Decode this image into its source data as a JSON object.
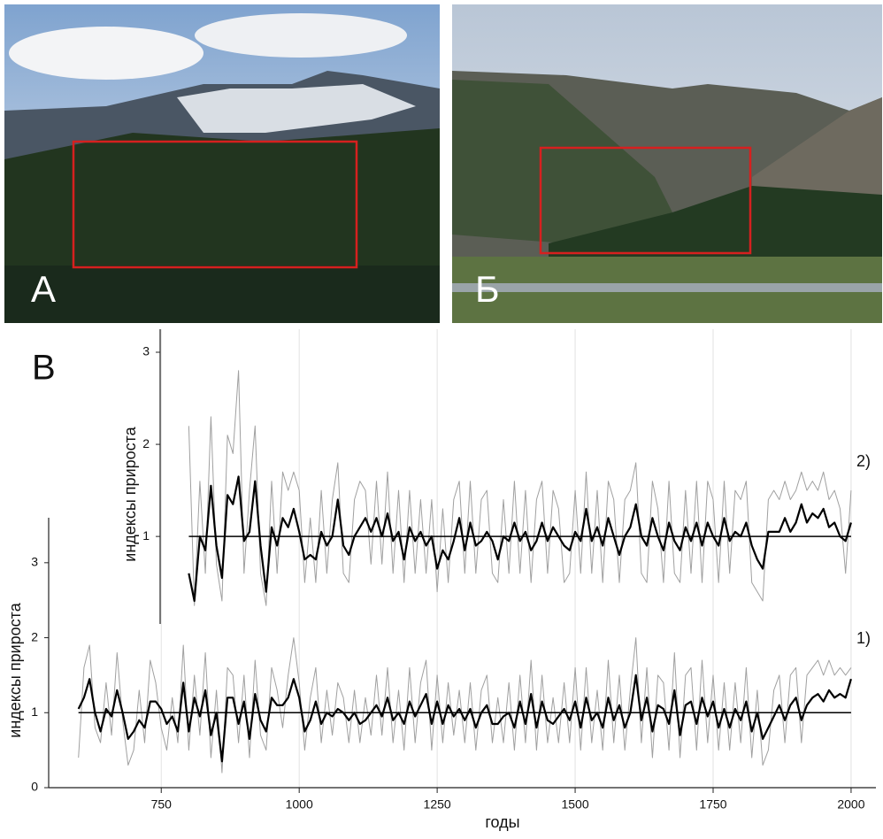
{
  "photos": [
    {
      "label": "А"
    },
    {
      "label": "Б"
    }
  ],
  "panel_label": "В",
  "chart_data": [
    {
      "type": "line",
      "panel_label": "2)",
      "y_label": "индексы прироста",
      "ylim": [
        0.05,
        3.25
      ],
      "yticks": [
        1,
        2,
        3
      ],
      "xlim": [
        546,
        2045
      ],
      "reference_value": 1,
      "x": [
        800,
        810,
        820,
        830,
        840,
        850,
        860,
        870,
        880,
        890,
        900,
        910,
        920,
        930,
        940,
        950,
        960,
        970,
        980,
        990,
        1000,
        1010,
        1020,
        1030,
        1040,
        1050,
        1060,
        1070,
        1080,
        1090,
        1100,
        1110,
        1120,
        1130,
        1140,
        1150,
        1160,
        1170,
        1180,
        1190,
        1200,
        1210,
        1220,
        1230,
        1240,
        1250,
        1260,
        1270,
        1280,
        1290,
        1300,
        1310,
        1320,
        1330,
        1340,
        1350,
        1360,
        1370,
        1380,
        1390,
        1400,
        1410,
        1420,
        1430,
        1440,
        1450,
        1460,
        1470,
        1480,
        1490,
        1500,
        1510,
        1520,
        1530,
        1540,
        1550,
        1560,
        1570,
        1580,
        1590,
        1600,
        1610,
        1620,
        1630,
        1640,
        1650,
        1660,
        1670,
        1680,
        1690,
        1700,
        1710,
        1720,
        1730,
        1740,
        1750,
        1760,
        1770,
        1780,
        1790,
        1800,
        1810,
        1820,
        1830,
        1840,
        1850,
        1860,
        1870,
        1880,
        1890,
        1900,
        1910,
        1920,
        1930,
        1940,
        1950,
        1960,
        1970,
        1980,
        1990,
        2000
      ],
      "series": [
        {
          "color": "#a0a0a0",
          "values": [
            2.2,
            0.25,
            1.6,
            0.6,
            2.3,
            0.7,
            0.3,
            2.1,
            1.9,
            2.8,
            0.6,
            1.5,
            2.2,
            0.6,
            0.25,
            1.6,
            0.6,
            1.7,
            1.5,
            1.7,
            1.5,
            0.5,
            1.2,
            0.5,
            1.5,
            0.6,
            1.4,
            1.8,
            0.6,
            0.5,
            1.4,
            1.6,
            1.5,
            0.7,
            1.6,
            0.7,
            1.7,
            0.6,
            1.5,
            0.5,
            1.5,
            0.6,
            1.4,
            0.6,
            1.4,
            0.4,
            1.3,
            0.5,
            1.4,
            1.6,
            0.6,
            1.6,
            0.6,
            1.4,
            1.5,
            0.6,
            0.5,
            1.4,
            0.6,
            1.6,
            0.6,
            1.5,
            0.5,
            1.4,
            1.6,
            0.6,
            1.5,
            1.3,
            0.5,
            0.6,
            1.5,
            0.6,
            1.7,
            0.6,
            1.5,
            0.5,
            1.6,
            1.4,
            0.5,
            1.4,
            1.5,
            1.8,
            0.6,
            0.5,
            1.6,
            1.3,
            0.5,
            1.6,
            0.6,
            0.5,
            1.5,
            0.6,
            1.6,
            0.5,
            1.6,
            1.4,
            0.5,
            1.6,
            0.6,
            1.5,
            1.4,
            1.6,
            0.5,
            0.4,
            0.3,
            1.4,
            1.5,
            1.4,
            1.6,
            1.4,
            1.5,
            1.7,
            1.5,
            1.6,
            1.5,
            1.7,
            1.4,
            1.5,
            1.3,
            0.6,
            1.5
          ]
        },
        {
          "color": "#000000",
          "values": [
            0.6,
            0.3,
            1.0,
            0.85,
            1.55,
            0.9,
            0.55,
            1.45,
            1.35,
            1.65,
            0.95,
            1.05,
            1.6,
            0.9,
            0.4,
            1.1,
            0.9,
            1.2,
            1.1,
            1.3,
            1.05,
            0.75,
            0.8,
            0.75,
            1.05,
            0.9,
            1.0,
            1.4,
            0.9,
            0.8,
            1.0,
            1.1,
            1.2,
            1.05,
            1.2,
            1.0,
            1.25,
            0.95,
            1.05,
            0.75,
            1.1,
            0.95,
            1.05,
            0.9,
            1.0,
            0.65,
            0.85,
            0.75,
            0.95,
            1.2,
            0.85,
            1.15,
            0.9,
            0.95,
            1.05,
            0.95,
            0.75,
            1.0,
            0.95,
            1.15,
            0.95,
            1.05,
            0.85,
            0.95,
            1.15,
            0.95,
            1.1,
            1.0,
            0.9,
            0.85,
            1.05,
            0.95,
            1.3,
            0.95,
            1.1,
            0.9,
            1.2,
            1.0,
            0.8,
            1.0,
            1.1,
            1.35,
            1.0,
            0.9,
            1.2,
            1.0,
            0.85,
            1.15,
            0.95,
            0.85,
            1.1,
            0.95,
            1.15,
            0.9,
            1.15,
            1.0,
            0.9,
            1.2,
            0.95,
            1.05,
            1.0,
            1.15,
            0.9,
            0.75,
            0.65,
            1.05,
            1.05,
            1.05,
            1.2,
            1.05,
            1.15,
            1.35,
            1.15,
            1.25,
            1.2,
            1.3,
            1.1,
            1.15,
            1.0,
            0.95,
            1.15
          ]
        }
      ]
    },
    {
      "type": "line",
      "panel_label": "1)",
      "y_label": "индексы прироста",
      "x_label": "годы",
      "ylim": [
        0,
        3.6
      ],
      "yticks": [
        0,
        1,
        2,
        3
      ],
      "xlim": [
        546,
        2045
      ],
      "xticks": [
        750,
        1000,
        1250,
        1500,
        1750,
        2000
      ],
      "grid": true,
      "reference_value": 1,
      "x": [
        600,
        610,
        620,
        630,
        640,
        650,
        660,
        670,
        680,
        690,
        700,
        710,
        720,
        730,
        740,
        750,
        760,
        770,
        780,
        790,
        800,
        810,
        820,
        830,
        840,
        850,
        860,
        870,
        880,
        890,
        900,
        910,
        920,
        930,
        940,
        950,
        960,
        970,
        980,
        990,
        1000,
        1010,
        1020,
        1030,
        1040,
        1050,
        1060,
        1070,
        1080,
        1090,
        1100,
        1110,
        1120,
        1130,
        1140,
        1150,
        1160,
        1170,
        1180,
        1190,
        1200,
        1210,
        1220,
        1230,
        1240,
        1250,
        1260,
        1270,
        1280,
        1290,
        1300,
        1310,
        1320,
        1330,
        1340,
        1350,
        1360,
        1370,
        1380,
        1390,
        1400,
        1410,
        1420,
        1430,
        1440,
        1450,
        1460,
        1470,
        1480,
        1490,
        1500,
        1510,
        1520,
        1530,
        1540,
        1550,
        1560,
        1570,
        1580,
        1590,
        1600,
        1610,
        1620,
        1630,
        1640,
        1650,
        1660,
        1670,
        1680,
        1690,
        1700,
        1710,
        1720,
        1730,
        1740,
        1750,
        1760,
        1770,
        1780,
        1790,
        1800,
        1810,
        1820,
        1830,
        1840,
        1850,
        1860,
        1870,
        1880,
        1890,
        1900,
        1910,
        1920,
        1930,
        1940,
        1950,
        1960,
        1970,
        1980,
        1990,
        2000
      ],
      "series": [
        {
          "color": "#a0a0a0",
          "values": [
            0.4,
            1.6,
            1.9,
            0.8,
            0.6,
            1.4,
            0.7,
            1.8,
            0.9,
            0.3,
            0.5,
            1.3,
            0.6,
            1.7,
            1.4,
            0.8,
            0.5,
            1.2,
            0.6,
            1.9,
            0.5,
            1.5,
            0.7,
            1.8,
            0.4,
            1.3,
            0.2,
            1.6,
            1.5,
            0.6,
            1.5,
            0.4,
            1.7,
            0.7,
            0.5,
            1.6,
            1.3,
            0.8,
            1.5,
            2.0,
            1.4,
            0.5,
            1.2,
            1.6,
            0.6,
            1.3,
            0.7,
            1.4,
            1.2,
            0.6,
            1.3,
            0.6,
            1.2,
            0.7,
            1.5,
            0.7,
            1.6,
            0.6,
            1.3,
            0.5,
            1.6,
            0.6,
            1.4,
            1.7,
            0.5,
            1.5,
            0.6,
            1.4,
            0.7,
            1.3,
            0.6,
            1.4,
            0.5,
            1.3,
            1.5,
            0.6,
            1.2,
            0.6,
            1.4,
            0.5,
            1.5,
            0.6,
            1.7,
            0.5,
            1.5,
            0.6,
            1.2,
            0.6,
            1.4,
            0.6,
            1.6,
            0.5,
            1.6,
            0.6,
            1.3,
            0.5,
            1.7,
            0.6,
            1.5,
            0.5,
            1.3,
            2.0,
            0.6,
            1.6,
            0.4,
            1.5,
            1.4,
            0.5,
            1.8,
            0.4,
            1.5,
            1.6,
            0.5,
            1.7,
            0.6,
            1.5,
            0.5,
            1.4,
            0.5,
            1.4,
            0.6,
            1.6,
            0.4,
            1.3,
            0.3,
            0.5,
            1.3,
            1.5,
            0.6,
            1.5,
            1.6,
            0.6,
            1.5,
            1.6,
            1.7,
            1.5,
            1.7,
            1.5,
            1.6,
            1.5,
            1.6
          ]
        },
        {
          "color": "#000000",
          "values": [
            1.05,
            1.2,
            1.45,
            1.0,
            0.75,
            1.05,
            0.95,
            1.3,
            1.0,
            0.65,
            0.75,
            0.9,
            0.8,
            1.15,
            1.15,
            1.05,
            0.85,
            0.95,
            0.75,
            1.4,
            0.75,
            1.2,
            0.95,
            1.3,
            0.7,
            1.0,
            0.35,
            1.2,
            1.2,
            0.85,
            1.15,
            0.65,
            1.25,
            0.9,
            0.75,
            1.2,
            1.1,
            1.1,
            1.2,
            1.45,
            1.2,
            0.75,
            0.9,
            1.15,
            0.85,
            1.0,
            0.95,
            1.05,
            1.0,
            0.9,
            1.0,
            0.85,
            0.9,
            1.0,
            1.1,
            0.95,
            1.2,
            0.9,
            1.0,
            0.85,
            1.15,
            0.95,
            1.1,
            1.25,
            0.85,
            1.15,
            0.85,
            1.1,
            0.95,
            1.05,
            0.9,
            1.05,
            0.8,
            1.0,
            1.1,
            0.85,
            0.85,
            0.95,
            1.0,
            0.8,
            1.15,
            0.85,
            1.25,
            0.8,
            1.15,
            0.9,
            0.85,
            0.95,
            1.05,
            0.9,
            1.15,
            0.8,
            1.2,
            0.9,
            1.0,
            0.8,
            1.2,
            0.9,
            1.1,
            0.8,
            1.0,
            1.5,
            0.9,
            1.2,
            0.75,
            1.1,
            1.05,
            0.85,
            1.3,
            0.7,
            1.1,
            1.15,
            0.85,
            1.2,
            0.95,
            1.15,
            0.8,
            1.05,
            0.8,
            1.05,
            0.9,
            1.15,
            0.75,
            1.0,
            0.65,
            0.8,
            0.95,
            1.1,
            0.9,
            1.1,
            1.2,
            0.9,
            1.1,
            1.2,
            1.25,
            1.15,
            1.3,
            1.2,
            1.25,
            1.2,
            1.45
          ]
        }
      ]
    }
  ]
}
